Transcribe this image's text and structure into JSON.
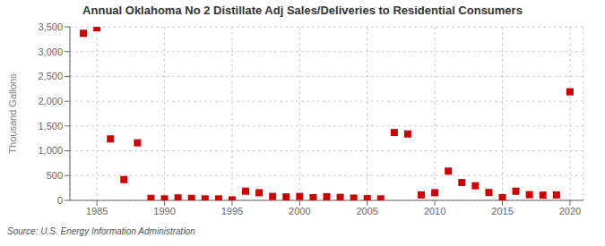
{
  "chart_data": {
    "type": "scatter",
    "title": "Annual Oklahoma No 2 Distillate Adj Sales/Deliveries to Residential Consumers",
    "ylabel": "Thousand Gallons",
    "annotations": [
      "Source: U.S. Energy Information Administration"
    ],
    "color": "#cc0000",
    "marker": "square",
    "grid": true,
    "xlim": [
      1983,
      2021
    ],
    "xticks": [
      1985,
      1990,
      1995,
      2000,
      2005,
      2010,
      2015,
      2020
    ],
    "ylim": [
      0,
      3500
    ],
    "yticks": [
      0,
      500,
      {
        "value": 1000,
        "label": "1,000"
      },
      {
        "value": 1500,
        "label": "1,500"
      },
      {
        "value": 2000,
        "label": "2,000"
      },
      {
        "value": 2500,
        "label": "2,500"
      },
      {
        "value": 3000,
        "label": "3,000"
      },
      {
        "value": 3500,
        "label": "3,500"
      }
    ],
    "x": [
      1984,
      1985,
      1986,
      1987,
      1988,
      1989,
      1990,
      1991,
      1992,
      1993,
      1994,
      1995,
      1996,
      1997,
      1998,
      1999,
      2000,
      2001,
      2002,
      2003,
      2004,
      2005,
      2006,
      2007,
      2008,
      2009,
      2010,
      2011,
      2012,
      2013,
      2014,
      2015,
      2016,
      2017,
      2018,
      2019,
      2020
    ],
    "values": [
      3370,
      3480,
      1240,
      420,
      1160,
      40,
      30,
      50,
      40,
      30,
      30,
      10,
      185,
      155,
      80,
      70,
      80,
      55,
      75,
      60,
      45,
      35,
      30,
      1370,
      1340,
      110,
      155,
      590,
      360,
      295,
      160,
      55,
      185,
      115,
      105,
      110,
      2190
    ]
  }
}
